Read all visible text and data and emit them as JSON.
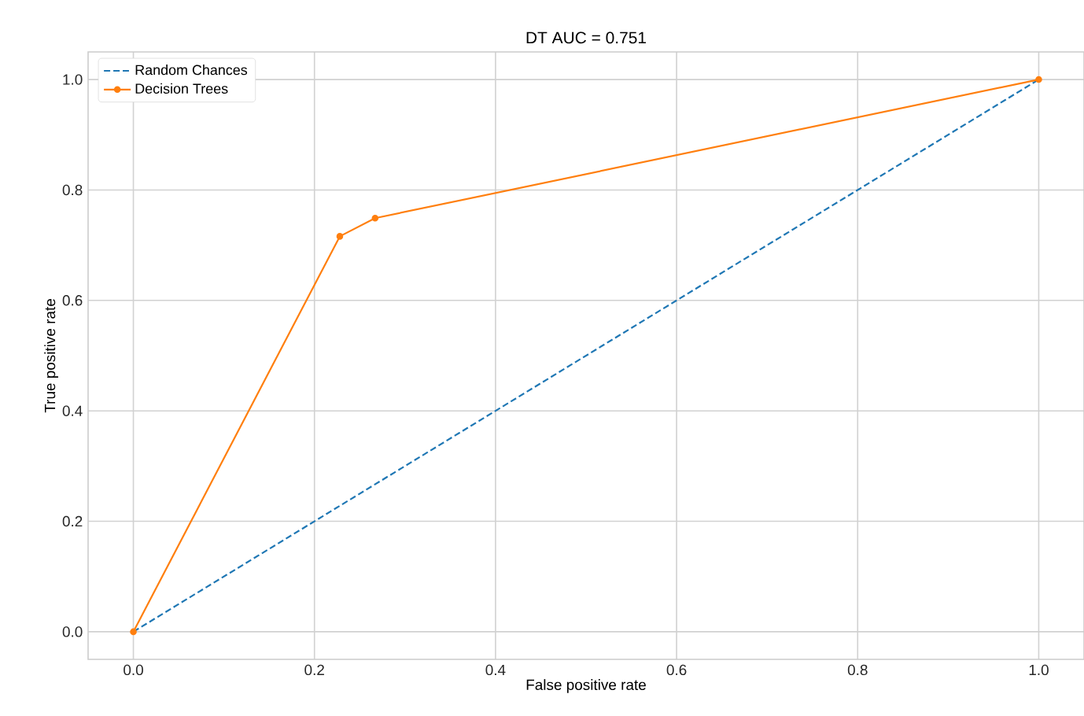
{
  "chart_data": {
    "type": "line",
    "title": "DT AUC = 0.751",
    "xlabel": "False positive rate",
    "ylabel": "True positive rate",
    "xlim": [
      -0.05,
      1.05
    ],
    "ylim": [
      -0.05,
      1.05
    ],
    "xticks": [
      {
        "value": 0,
        "label": "0.0"
      },
      {
        "value": 0.2,
        "label": "0.2"
      },
      {
        "value": 0.4,
        "label": "0.4"
      },
      {
        "value": 0.6,
        "label": "0.6"
      },
      {
        "value": 0.8,
        "label": "0.8"
      },
      {
        "value": 1,
        "label": "1.0"
      }
    ],
    "yticks": [
      {
        "value": 0,
        "label": "0.0"
      },
      {
        "value": 0.2,
        "label": "0.2"
      },
      {
        "value": 0.4,
        "label": "0.4"
      },
      {
        "value": 0.6,
        "label": "0.6"
      },
      {
        "value": 0.8,
        "label": "0.8"
      },
      {
        "value": 1,
        "label": "1.0"
      }
    ],
    "grid": true,
    "legend": "top left",
    "series": [
      {
        "name": "Random Chances",
        "color": "#1f77b4",
        "line_style": "dashed",
        "marker": "none",
        "x": [
          0,
          1
        ],
        "values": [
          0,
          1
        ]
      },
      {
        "name": "Decision Trees",
        "color": "#ff7f0e",
        "line_style": "solid",
        "marker": "circle",
        "x": [
          0,
          0.228,
          0.267,
          1
        ],
        "values": [
          0,
          0.716,
          0.749,
          1
        ]
      }
    ]
  }
}
